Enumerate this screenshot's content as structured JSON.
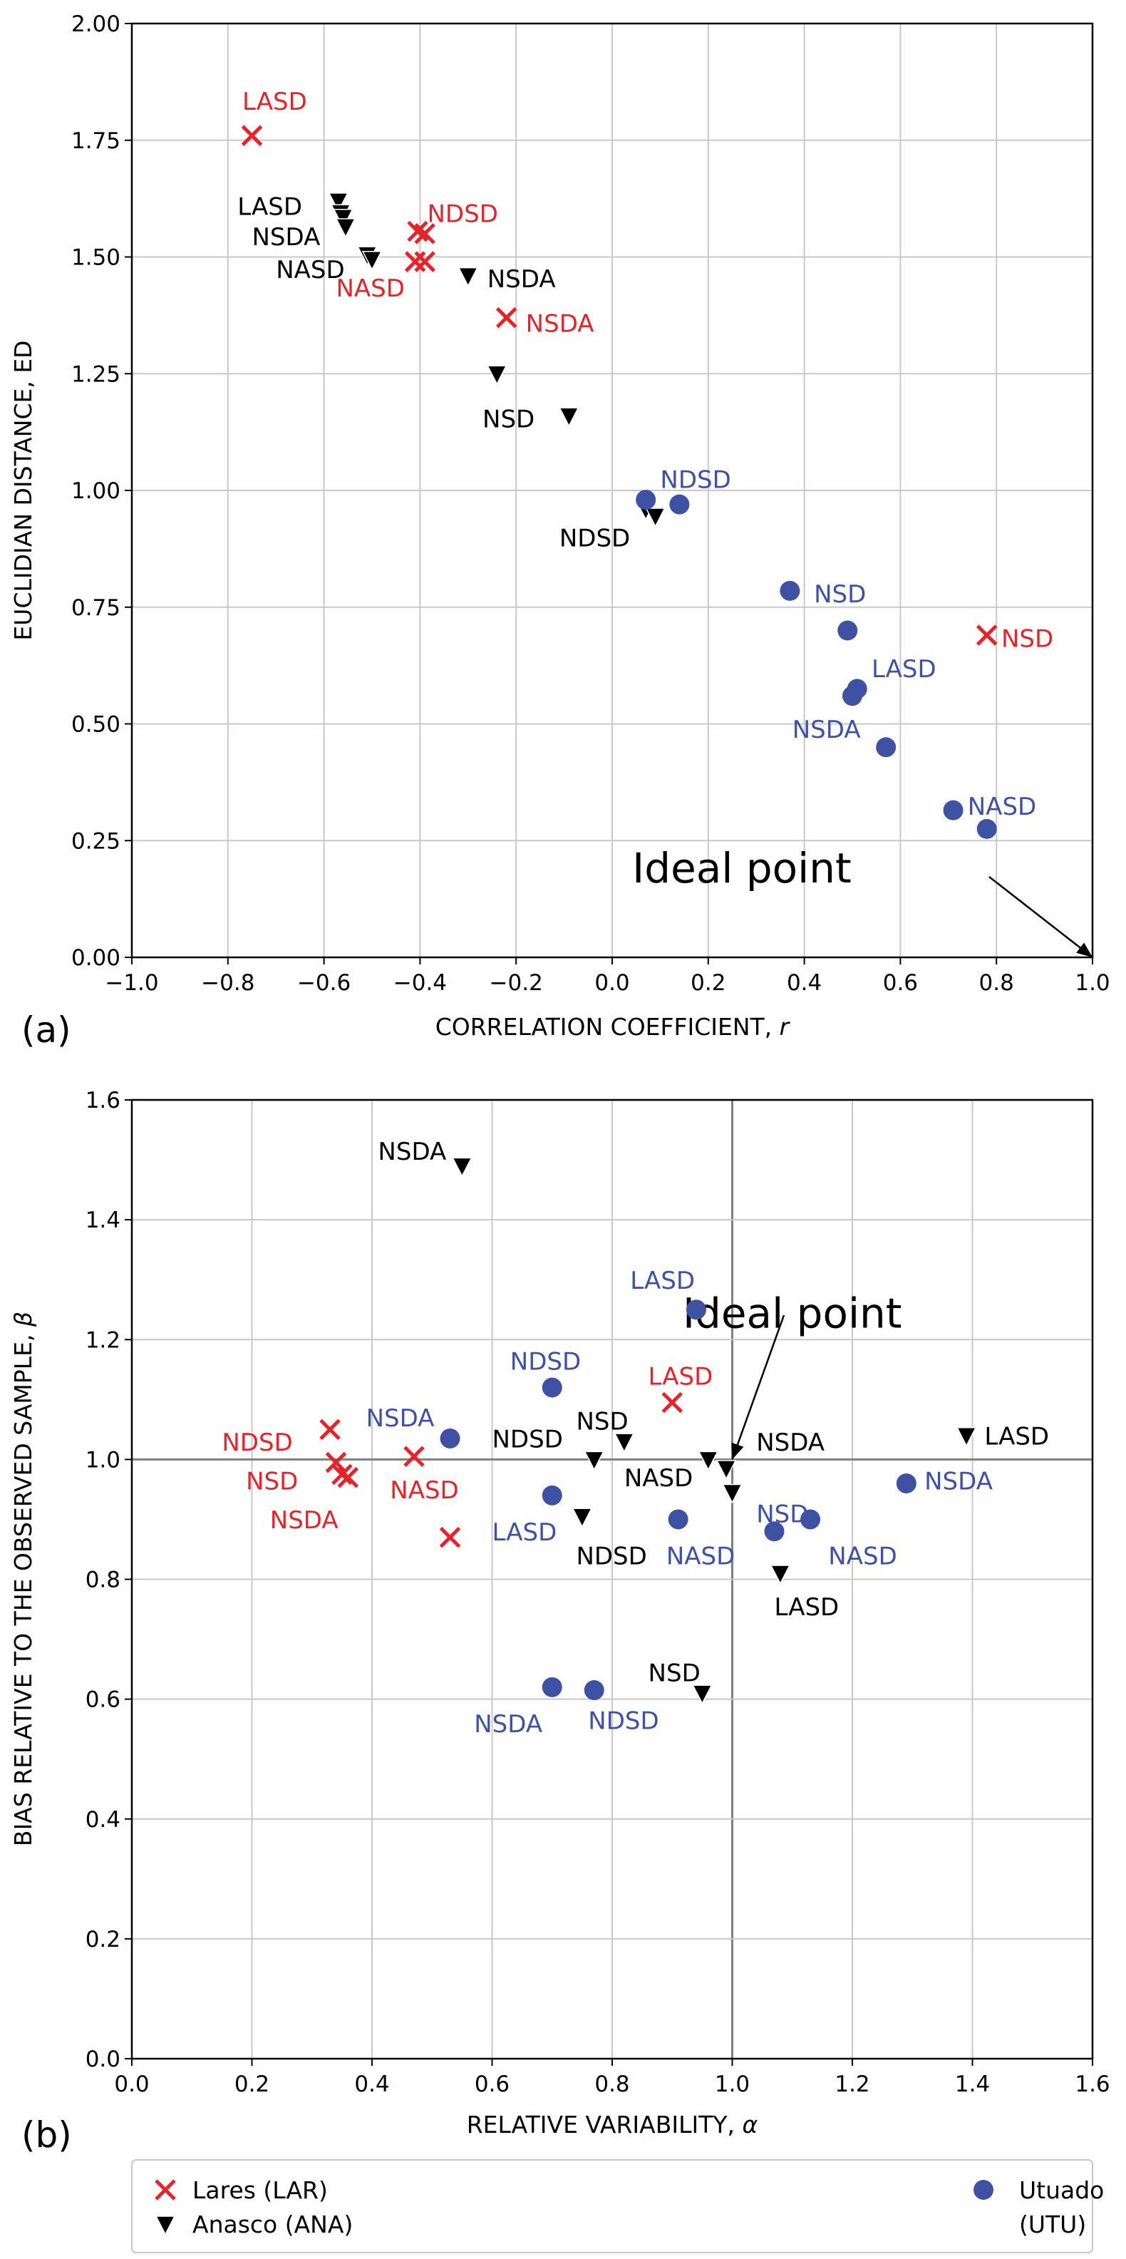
{
  "colors": {
    "lares": "#e3242b",
    "anasco": "#000000",
    "utuado": "#3f51a3",
    "grid": "#c8c8c8",
    "ideal_line": "#808080"
  },
  "legend": [
    {
      "key": "lares",
      "marker": "x",
      "label": "Lares (LAR)"
    },
    {
      "key": "anasco",
      "marker": "tri",
      "label": "Anasco (ANA)"
    },
    {
      "key": "utuado",
      "marker": "circle",
      "label": "Utuado",
      "label2": "(UTU)"
    }
  ],
  "chart_data": [
    {
      "type": "scatter",
      "panel_label": "(a)",
      "xlabel": "CORRELATION COEFFICIENT, ",
      "xlabel_sym": "r",
      "ylabel": "EUCLIDIAN DISTANCE, ED",
      "xlim": [
        -1.0,
        1.0
      ],
      "ylim": [
        0.0,
        2.0
      ],
      "xticks": [
        -1.0,
        -0.8,
        -0.6,
        -0.4,
        -0.2,
        0.0,
        0.2,
        0.4,
        0.6,
        0.8,
        1.0
      ],
      "xtick_labels": [
        "−1.0",
        "−0.8",
        "−0.6",
        "−0.4",
        "−0.2",
        "0.0",
        "0.2",
        "0.4",
        "0.6",
        "0.8",
        "1.0"
      ],
      "yticks": [
        0.0,
        0.25,
        0.5,
        0.75,
        1.0,
        1.25,
        1.5,
        1.75,
        2.0
      ],
      "ytick_labels": [
        "0.00",
        "0.25",
        "0.50",
        "0.75",
        "1.00",
        "1.25",
        "1.50",
        "1.75",
        "2.00"
      ],
      "ideal_point": {
        "label": "Ideal point",
        "x": 1.0,
        "y": 0.0,
        "text_at": [
          0.27,
          0.16
        ]
      },
      "series": [
        {
          "name": "Lares (LAR)",
          "key": "lares",
          "marker": "x",
          "points": [
            [
              -0.75,
              1.76
            ],
            [
              -0.405,
              1.555
            ],
            [
              -0.39,
              1.55
            ],
            [
              -0.41,
              1.49
            ],
            [
              -0.39,
              1.49
            ],
            [
              -0.22,
              1.37
            ],
            [
              0.78,
              0.69
            ]
          ]
        },
        {
          "name": "Anasco (ANA)",
          "key": "anasco",
          "marker": "tri",
          "points": [
            [
              -0.57,
              1.62
            ],
            [
              -0.565,
              1.595
            ],
            [
              -0.56,
              1.585
            ],
            [
              -0.555,
              1.565
            ],
            [
              -0.51,
              1.505
            ],
            [
              -0.5,
              1.495
            ],
            [
              -0.3,
              1.46
            ],
            [
              -0.24,
              1.25
            ],
            [
              -0.09,
              1.16
            ],
            [
              0.07,
              0.96
            ],
            [
              0.09,
              0.945
            ]
          ]
        },
        {
          "name": "Utuado (UTU)",
          "key": "utuado",
          "marker": "circle",
          "points": [
            [
              0.07,
              0.98
            ],
            [
              0.14,
              0.97
            ],
            [
              0.37,
              0.785
            ],
            [
              0.49,
              0.7
            ],
            [
              0.5,
              0.56
            ],
            [
              0.51,
              0.575
            ],
            [
              0.57,
              0.45
            ],
            [
              0.71,
              0.315
            ],
            [
              0.78,
              0.275
            ]
          ]
        }
      ],
      "annotations": [
        {
          "text": "LASD",
          "key": "lares",
          "x": -0.77,
          "y": 1.815
        },
        {
          "text": "NDSD",
          "key": "lares",
          "x": -0.385,
          "y": 1.575
        },
        {
          "text": "NASD",
          "key": "lares",
          "x": -0.575,
          "y": 1.415
        },
        {
          "text": "NSDA",
          "key": "lares",
          "x": -0.18,
          "y": 1.34
        },
        {
          "text": "NSD",
          "key": "lares",
          "x": 0.81,
          "y": 0.665
        },
        {
          "text": "LASD",
          "key": "anasco",
          "x": -0.78,
          "y": 1.59
        },
        {
          "text": "NSDA",
          "key": "anasco",
          "x": -0.75,
          "y": 1.525
        },
        {
          "text": "NASD",
          "key": "anasco",
          "x": -0.7,
          "y": 1.455
        },
        {
          "text": "NSDA",
          "key": "anasco",
          "x": -0.26,
          "y": 1.435
        },
        {
          "text": "NSD",
          "key": "anasco",
          "x": -0.27,
          "y": 1.135
        },
        {
          "text": "NDSD",
          "key": "anasco",
          "x": -0.11,
          "y": 0.88
        },
        {
          "text": "NDSD",
          "key": "utuado",
          "x": 0.1,
          "y": 1.005
        },
        {
          "text": "NSD",
          "key": "utuado",
          "x": 0.42,
          "y": 0.76
        },
        {
          "text": "LASD",
          "key": "utuado",
          "x": 0.54,
          "y": 0.6
        },
        {
          "text": "NSDA",
          "key": "utuado",
          "x": 0.375,
          "y": 0.47
        },
        {
          "text": "NASD",
          "key": "utuado",
          "x": 0.74,
          "y": 0.305
        }
      ]
    },
    {
      "type": "scatter",
      "panel_label": "(b)",
      "xlabel": "RELATIVE VARIABILITY, ",
      "xlabel_sym": "α",
      "ylabel": "BIAS RELATIVE TO THE OBSERVED SAMPLE, ",
      "ylabel_sym": "β",
      "xlim": [
        0.0,
        1.6
      ],
      "ylim": [
        0.0,
        1.6
      ],
      "xticks": [
        0.0,
        0.2,
        0.4,
        0.6,
        0.8,
        1.0,
        1.2,
        1.4,
        1.6
      ],
      "xtick_labels": [
        "0.0",
        "0.2",
        "0.4",
        "0.6",
        "0.8",
        "1.0",
        "1.2",
        "1.4",
        "1.6"
      ],
      "yticks": [
        0.0,
        0.2,
        0.4,
        0.6,
        0.8,
        1.0,
        1.2,
        1.4,
        1.6
      ],
      "ytick_labels": [
        "0.0",
        "0.2",
        "0.4",
        "0.6",
        "0.8",
        "1.0",
        "1.2",
        "1.4",
        "1.6"
      ],
      "ideal_point": {
        "label": "Ideal point",
        "x": 1.0,
        "y": 1.0,
        "text_at": [
          1.1,
          1.22
        ]
      },
      "series": [
        {
          "name": "Lares (LAR)",
          "key": "lares",
          "marker": "x",
          "points": [
            [
              0.33,
              1.05
            ],
            [
              0.34,
              0.995
            ],
            [
              0.35,
              0.975
            ],
            [
              0.36,
              0.97
            ],
            [
              0.47,
              1.005
            ],
            [
              0.53,
              0.87
            ],
            [
              0.9,
              1.095
            ]
          ]
        },
        {
          "name": "Anasco (ANA)",
          "key": "anasco",
          "marker": "tri",
          "points": [
            [
              0.55,
              1.49
            ],
            [
              0.75,
              0.905
            ],
            [
              0.77,
              1.0
            ],
            [
              0.82,
              1.03
            ],
            [
              0.95,
              0.61
            ],
            [
              0.96,
              1.0
            ],
            [
              0.99,
              0.985
            ],
            [
              1.0,
              0.945
            ],
            [
              1.08,
              0.81
            ],
            [
              1.39,
              1.04
            ]
          ]
        },
        {
          "name": "Utuado (UTU)",
          "key": "utuado",
          "marker": "circle",
          "points": [
            [
              0.53,
              1.035
            ],
            [
              0.7,
              1.12
            ],
            [
              0.7,
              0.94
            ],
            [
              0.7,
              0.62
            ],
            [
              0.77,
              0.615
            ],
            [
              0.91,
              0.9
            ],
            [
              0.94,
              1.25
            ],
            [
              1.07,
              0.88
            ],
            [
              1.13,
              0.9
            ],
            [
              1.29,
              0.96
            ]
          ]
        }
      ],
      "annotations": [
        {
          "text": "NDSD",
          "key": "lares",
          "x": 0.15,
          "y": 1.015
        },
        {
          "text": "NSD",
          "key": "lares",
          "x": 0.19,
          "y": 0.95
        },
        {
          "text": "NSDA",
          "key": "lares",
          "x": 0.23,
          "y": 0.885
        },
        {
          "text": "NASD",
          "key": "lares",
          "x": 0.43,
          "y": 0.935
        },
        {
          "text": "LASD",
          "key": "lares",
          "x": 0.86,
          "y": 1.125
        },
        {
          "text": "NSDA",
          "key": "anasco",
          "x": 0.41,
          "y": 1.5
        },
        {
          "text": "NSD",
          "key": "anasco",
          "x": 0.74,
          "y": 1.05
        },
        {
          "text": "NDSD",
          "key": "anasco",
          "x": 0.6,
          "y": 1.02
        },
        {
          "text": "NSDA",
          "key": "anasco",
          "x": 1.04,
          "y": 1.015
        },
        {
          "text": "NASD",
          "key": "anasco",
          "x": 0.82,
          "y": 0.955
        },
        {
          "text": "NDSD",
          "key": "anasco",
          "x": 0.74,
          "y": 0.825
        },
        {
          "text": "LASD",
          "key": "anasco",
          "x": 1.07,
          "y": 0.74
        },
        {
          "text": "NSD",
          "key": "anasco",
          "x": 0.86,
          "y": 0.63
        },
        {
          "text": "LASD",
          "key": "anasco",
          "x": 1.42,
          "y": 1.025
        },
        {
          "text": "NSDA",
          "key": "utuado",
          "x": 0.39,
          "y": 1.055
        },
        {
          "text": "NDSD",
          "key": "utuado",
          "x": 0.63,
          "y": 1.15
        },
        {
          "text": "LASD",
          "key": "utuado",
          "x": 0.6,
          "y": 0.865
        },
        {
          "text": "LASD",
          "key": "utuado",
          "x": 0.83,
          "y": 1.285
        },
        {
          "text": "NASD",
          "key": "utuado",
          "x": 0.89,
          "y": 0.825
        },
        {
          "text": "NSD",
          "key": "utuado",
          "x": 1.04,
          "y": 0.895
        },
        {
          "text": "NASD",
          "key": "utuado",
          "x": 1.16,
          "y": 0.825
        },
        {
          "text": "NSDA",
          "key": "utuado",
          "x": 1.32,
          "y": 0.95
        },
        {
          "text": "NSDA",
          "key": "utuado",
          "x": 0.57,
          "y": 0.545
        },
        {
          "text": "NDSD",
          "key": "utuado",
          "x": 0.76,
          "y": 0.55
        }
      ]
    }
  ]
}
